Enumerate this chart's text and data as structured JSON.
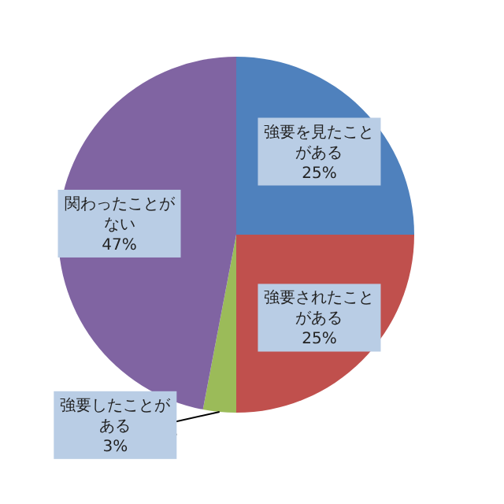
{
  "chart_data": {
    "type": "pie",
    "categories": [
      "強要を見たことがある",
      "強要されたことがある",
      "強要したことがある",
      "関わったことがない"
    ],
    "values": [
      25,
      25,
      3,
      47
    ],
    "value_labels": [
      "25%",
      "25%",
      "3%",
      "47%"
    ],
    "colors": [
      "#4f81bd",
      "#c0504d",
      "#9bbb59",
      "#8064a2"
    ]
  }
}
